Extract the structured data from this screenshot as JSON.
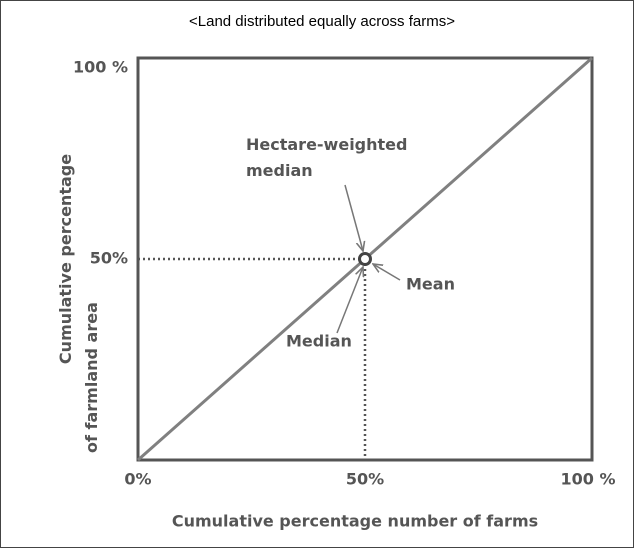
{
  "chart_data": {
    "type": "line",
    "title": "<Land distributed equally across farms>",
    "x_label": "Cumulative percentage number of farms",
    "y_label": "Cumulative percentage  of farmland area",
    "x": [
      0,
      100
    ],
    "series": [
      {
        "color": "#808080",
        "values": [
          0,
          100
        ]
      }
    ],
    "xlim": [
      0,
      100
    ],
    "ylim": [
      0,
      100
    ],
    "xticks": [
      {
        "value": 0,
        "label": "0%"
      },
      {
        "value": 50,
        "label": "50%"
      },
      {
        "value": 100,
        "label": "100 %"
      }
    ],
    "yticks": [
      {
        "value": 50,
        "label": "50%"
      },
      {
        "value": 100,
        "label": "100 %"
      }
    ],
    "marker": {
      "x": 50,
      "y": 50
    },
    "annotations": [
      "Hectare-weighted median",
      "Mean",
      "Median"
    ],
    "grid": false
  }
}
